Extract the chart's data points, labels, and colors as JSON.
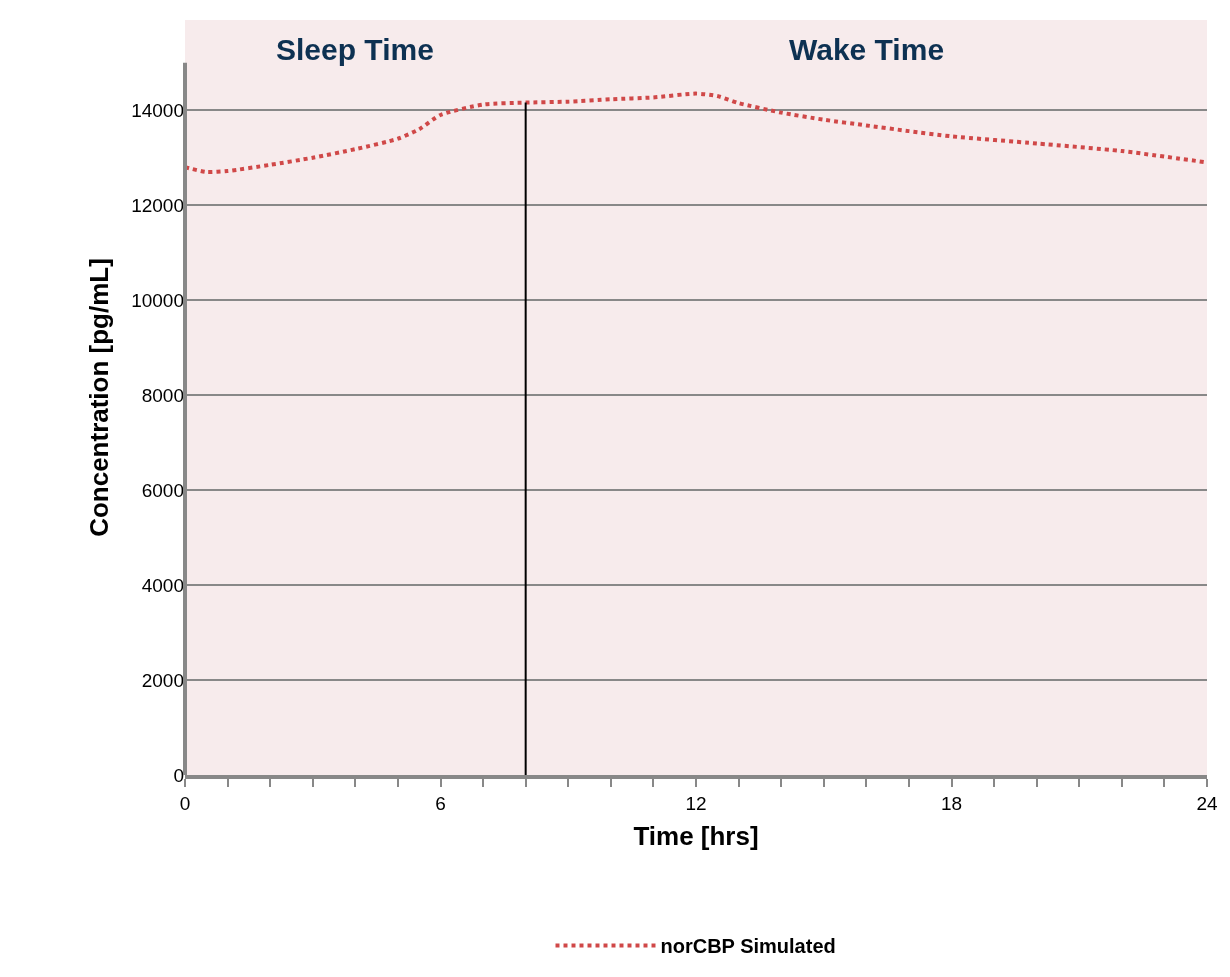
{
  "chart_data": {
    "type": "line",
    "xlabel": "Time [hrs]",
    "ylabel": "Concentration [pg/mL]",
    "x": [
      0,
      0.5,
      1,
      2,
      3,
      4,
      5,
      5.5,
      6,
      7,
      8,
      9,
      10,
      11,
      12,
      12.5,
      13,
      14,
      15,
      16,
      17,
      18,
      20,
      22,
      24
    ],
    "series": [
      {
        "name": "norCBP Simulated",
        "color": "#d04848",
        "line_style": "dotted",
        "values": [
          12800,
          12700,
          12720,
          12850,
          13000,
          13180,
          13400,
          13600,
          13900,
          14120,
          14160,
          14180,
          14230,
          14270,
          14350,
          14300,
          14150,
          13950,
          13800,
          13680,
          13560,
          13450,
          13300,
          13140,
          12900
        ]
      }
    ],
    "xlim": [
      0,
      24
    ],
    "xticks": [
      0,
      {
        "value": 1,
        "label": null
      },
      {
        "value": 2,
        "label": null
      },
      {
        "value": 3,
        "label": null
      },
      {
        "value": 4,
        "label": null
      },
      {
        "value": 5,
        "label": null
      },
      6,
      {
        "value": 7,
        "label": null
      },
      {
        "value": 8,
        "label": null
      },
      {
        "value": 9,
        "label": null
      },
      {
        "value": 10,
        "label": null
      },
      {
        "value": 11,
        "label": null
      },
      12,
      {
        "value": 13,
        "label": null
      },
      {
        "value": 14,
        "label": null
      },
      {
        "value": 15,
        "label": null
      },
      {
        "value": 16,
        "label": null
      },
      {
        "value": 17,
        "label": null
      },
      18,
      {
        "value": 19,
        "label": null
      },
      {
        "value": 20,
        "label": null
      },
      {
        "value": 21,
        "label": null
      },
      {
        "value": 22,
        "label": null
      },
      {
        "value": 23,
        "label": null
      },
      24
    ],
    "ylim": [
      0,
      15000
    ],
    "yticks": [
      0,
      2000,
      4000,
      6000,
      8000,
      10000,
      12000,
      14000
    ],
    "ref_lines": [
      {
        "axis": "x",
        "value": 8,
        "color": "#000000"
      }
    ],
    "annotations": [
      "Sleep Time",
      "Wake Time"
    ],
    "grid": "y",
    "legend": "bottom",
    "marker": "none"
  }
}
